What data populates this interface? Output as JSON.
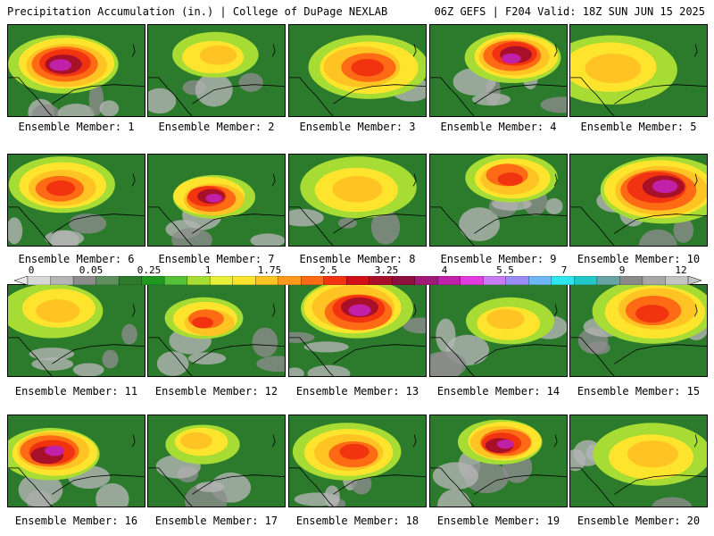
{
  "header": {
    "left": "Precipitation Accumulation (in.) | College of DuPage NEXLAB",
    "right": "06Z GEFS | F204 Valid: 18Z SUN JUN 15 2025"
  },
  "panels": [
    {
      "label": "Ensemble Member: 1"
    },
    {
      "label": "Ensemble Member: 2"
    },
    {
      "label": "Ensemble Member: 3"
    },
    {
      "label": "Ensemble Member: 4"
    },
    {
      "label": "Ensemble Member: 5"
    },
    {
      "label": "Ensemble Member: 6"
    },
    {
      "label": "Ensemble Member: 7"
    },
    {
      "label": "Ensemble Member: 8"
    },
    {
      "label": "Ensemble Member: 9"
    },
    {
      "label": "Ensemble Member: 10"
    },
    {
      "label": "Ensemble Member: 11"
    },
    {
      "label": "Ensemble Member: 12"
    },
    {
      "label": "Ensemble Member: 13"
    },
    {
      "label": "Ensemble Member: 14"
    },
    {
      "label": "Ensemble Member: 15"
    },
    {
      "label": "Ensemble Member: 16"
    },
    {
      "label": "Ensemble Member: 17"
    },
    {
      "label": "Ensemble Member: 18"
    },
    {
      "label": "Ensemble Member: 19"
    },
    {
      "label": "Ensemble Member: 20"
    }
  ],
  "colorbar": {
    "tick_labels": [
      "0",
      "0.05",
      "0.25",
      "1",
      "1.75",
      "2.5",
      "3.25",
      "4",
      "5.5",
      "7",
      "9",
      "12"
    ],
    "colors": [
      "#d8d8d8",
      "#b4b4b4",
      "#8c8c8c",
      "#5f8f5f",
      "#2c7a2c",
      "#1f9a1f",
      "#55c23a",
      "#a6dc33",
      "#e8f03a",
      "#ffe42e",
      "#ffc323",
      "#ff9a1c",
      "#ff6a14",
      "#f2330f",
      "#d2101a",
      "#a8102a",
      "#8e0e3c",
      "#a11a78",
      "#c120a8",
      "#e23ce0",
      "#c77cf5",
      "#9a8cf7",
      "#6fb6f8",
      "#2ee6ef",
      "#22c8c8",
      "#6aa3a3",
      "#8a8a8a",
      "#a6a6a6",
      "#c4c4c4"
    ]
  }
}
